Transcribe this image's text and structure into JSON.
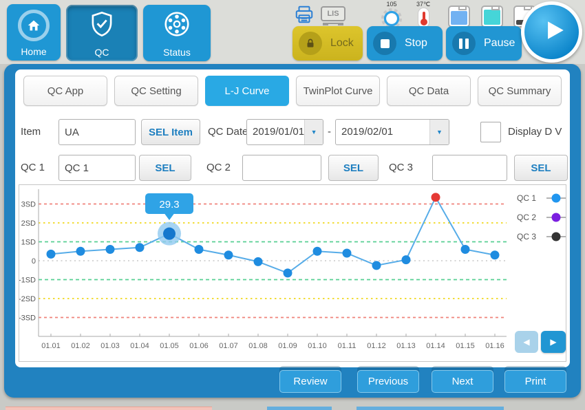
{
  "colors": {
    "accent_blue": "#2196d3",
    "panel_blue": "#2182c0",
    "active_tab_blue": "#29a9e4",
    "lock_yellow": "#d1b822",
    "alarm_red": "#e53935",
    "sel_text_blue": "#1e7fc0"
  },
  "topbar": {
    "nav": [
      {
        "label": "Home"
      },
      {
        "label": "QC"
      },
      {
        "label": "Status"
      }
    ],
    "status": {
      "lis_label": "LIS",
      "gear_value": "105",
      "temperature": "37℃",
      "bottles": [
        {
          "fill": "#72b2f2",
          "level": "high"
        },
        {
          "fill": "#45d5d8",
          "level": "high"
        },
        {
          "fill": "#4a4a4a",
          "level": "low"
        }
      ]
    },
    "controls": {
      "lock": "Lock",
      "stop": "Stop",
      "pause": "Pause"
    }
  },
  "tabs": [
    {
      "label": "QC App",
      "active": false
    },
    {
      "label": "QC Setting",
      "active": false
    },
    {
      "label": "L-J Curve",
      "active": true
    },
    {
      "label": "TwinPlot Curve",
      "active": false
    },
    {
      "label": "QC Data",
      "active": false
    },
    {
      "label": "QC Summary",
      "active": false
    }
  ],
  "filters": {
    "item_label": "Item",
    "item_value": "UA",
    "sel_item_label": "SEL Item",
    "qc_date_label": "QC Date",
    "date_from": "2019/01/01",
    "date_separator": "-",
    "date_to": "2019/02/01",
    "display_dv_label": "Display D V",
    "qc1_label": "QC 1",
    "qc1_value": "QC 1",
    "qc2_label": "QC 2",
    "qc2_value": "",
    "qc3_label": "QC 3",
    "qc3_value": "",
    "sel_label": "SEL"
  },
  "chart_data": {
    "type": "line",
    "title": "L-J Curve",
    "x_labels": [
      "01.01",
      "01.02",
      "01.03",
      "01.04",
      "01.05",
      "01.06",
      "01.07",
      "01.08",
      "01.09",
      "01.10",
      "01.11",
      "01.12",
      "01.13",
      "01.14",
      "01.15",
      "01.16"
    ],
    "y_tick_labels": [
      "3SD",
      "2SD",
      "1SD",
      "0",
      "-1SD",
      "-2SD",
      "-3SD"
    ],
    "ylim_sd": [
      -3.9,
      3.9
    ],
    "grid": true,
    "legend_position": "right",
    "control_limit_colors": {
      "sd3": "#ef837b",
      "sd2": "#f0d81c",
      "sd1": "#57cf93",
      "mean": "#cfcfcf"
    },
    "legend": [
      {
        "label": "QC 1",
        "color": "#2196ef"
      },
      {
        "label": "QC 2",
        "color": "#7b1fe0"
      },
      {
        "label": "QC 3",
        "color": "#333333"
      }
    ],
    "series": [
      {
        "name": "QC 1",
        "color_line": "#56ace8",
        "color_point": "#1f8ce0",
        "values_sd": [
          0.35,
          0.5,
          0.6,
          0.7,
          1.43,
          0.6,
          0.3,
          -0.05,
          -0.65,
          0.5,
          0.4,
          -0.25,
          0.05,
          3.35,
          0.6,
          0.3
        ],
        "out_of_control_index": 13,
        "out_of_control_x": "01.14",
        "out_of_control_color": "#e53935"
      }
    ],
    "selected_point": {
      "index": 4,
      "x_label": "01.05",
      "tooltip_value": "29.3",
      "tooltip_bg": "#2fa3e6",
      "halo_color": "#90c9f0",
      "point_color": "#1477cd"
    }
  },
  "chart_nav": {
    "prev": "◀",
    "next": "▶"
  },
  "footer": {
    "buttons": [
      {
        "label": "Review"
      },
      {
        "label": "Previous"
      },
      {
        "label": "Next"
      },
      {
        "label": "Print"
      }
    ]
  }
}
